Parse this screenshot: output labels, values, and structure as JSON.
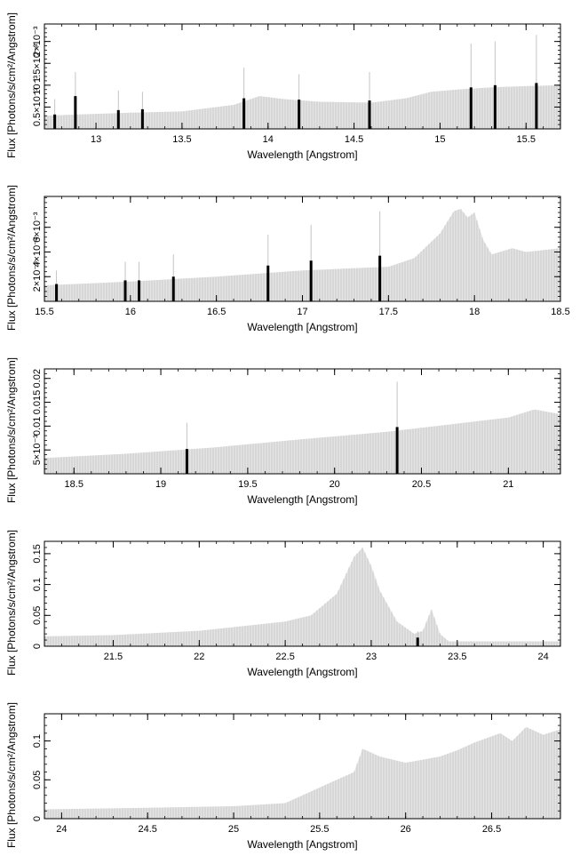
{
  "colors": {
    "fill": "#e4e4e4",
    "stem": "#c4c4c4",
    "marker": "#000000",
    "axis": "#000000"
  },
  "chart_data": [
    {
      "type": "area",
      "xlabel": "Wavelength [Angstrom]",
      "ylabel": "Flux [Photons/s/cm²/Angstrom]",
      "xlim": [
        12.7,
        15.7
      ],
      "ylim": [
        0,
        0.0024
      ],
      "xticks": [
        13,
        13.5,
        14,
        14.5,
        15,
        15.5
      ],
      "xtick_labels": [
        "13",
        "13.5",
        "14",
        "14.5",
        "15",
        "15.5"
      ],
      "yticks": [
        0.0005,
        0.001,
        0.0015,
        0.002
      ],
      "ytick_labels": [
        "0.5×10⁻³",
        "10⁻³",
        "1.5×10⁻³",
        "2×10⁻³"
      ],
      "grid": false,
      "spectrum": [
        [
          12.7,
          0.0003
        ],
        [
          12.9,
          0.00033
        ],
        [
          13.2,
          0.00037
        ],
        [
          13.5,
          0.0004
        ],
        [
          13.8,
          0.00055
        ],
        [
          13.95,
          0.00075
        ],
        [
          14.1,
          0.00068
        ],
        [
          14.3,
          0.00062
        ],
        [
          14.6,
          0.0006
        ],
        [
          14.8,
          0.0007
        ],
        [
          14.95,
          0.00085
        ],
        [
          15.1,
          0.0009
        ],
        [
          15.3,
          0.00095
        ],
        [
          15.5,
          0.00098
        ],
        [
          15.7,
          0.001
        ]
      ],
      "error_bars": [
        {
          "x": 12.76,
          "y": 0.00033,
          "err": 0.00035
        },
        {
          "x": 12.88,
          "y": 0.00075,
          "err": 0.00055
        },
        {
          "x": 13.13,
          "y": 0.00043,
          "err": 0.00045
        },
        {
          "x": 13.27,
          "y": 0.00045,
          "err": 0.0004
        },
        {
          "x": 13.86,
          "y": 0.0007,
          "err": 0.0007
        },
        {
          "x": 14.18,
          "y": 0.00067,
          "err": 0.00058
        },
        {
          "x": 14.59,
          "y": 0.00065,
          "err": 0.00065
        },
        {
          "x": 15.18,
          "y": 0.00095,
          "err": 0.001
        },
        {
          "x": 15.32,
          "y": 0.001,
          "err": 0.001
        },
        {
          "x": 15.56,
          "y": 0.00105,
          "err": 0.0011
        }
      ]
    },
    {
      "type": "area",
      "xlabel": "Wavelength [Angstrom]",
      "ylabel": "Flux [Photons/s/cm²/Angstrom]",
      "xlim": [
        15.5,
        18.5
      ],
      "ylim": [
        0,
        0.0085
      ],
      "xticks": [
        15.5,
        16,
        16.5,
        17,
        17.5,
        18,
        18.5
      ],
      "xtick_labels": [
        "15.5",
        "16",
        "16.5",
        "17",
        "17.5",
        "18",
        "18.5"
      ],
      "yticks": [
        0.002,
        0.004,
        0.006
      ],
      "ytick_labels": [
        "2×10⁻³",
        "4×10⁻³",
        "6×10⁻³"
      ],
      "grid": false,
      "spectrum": [
        [
          15.5,
          0.0013
        ],
        [
          16.0,
          0.0016
        ],
        [
          16.5,
          0.002
        ],
        [
          17.0,
          0.0025
        ],
        [
          17.5,
          0.0028
        ],
        [
          17.65,
          0.0035
        ],
        [
          17.8,
          0.0055
        ],
        [
          17.88,
          0.0073
        ],
        [
          17.92,
          0.0075
        ],
        [
          17.96,
          0.0068
        ],
        [
          18.0,
          0.0072
        ],
        [
          18.05,
          0.005
        ],
        [
          18.1,
          0.0038
        ],
        [
          18.22,
          0.0043
        ],
        [
          18.3,
          0.004
        ],
        [
          18.5,
          0.0043
        ]
      ],
      "error_bars": [
        {
          "x": 15.57,
          "y": 0.0014,
          "err": 0.0011
        },
        {
          "x": 15.97,
          "y": 0.0017,
          "err": 0.0015
        },
        {
          "x": 16.05,
          "y": 0.0017,
          "err": 0.0015
        },
        {
          "x": 16.25,
          "y": 0.002,
          "err": 0.0018
        },
        {
          "x": 16.8,
          "y": 0.0029,
          "err": 0.0025
        },
        {
          "x": 17.05,
          "y": 0.0033,
          "err": 0.0029
        },
        {
          "x": 17.45,
          "y": 0.0037,
          "err": 0.0036
        }
      ]
    },
    {
      "type": "area",
      "xlabel": "Wavelength [Angstrom]",
      "ylabel": "Flux [Photons/s/cm²/Angstrom]",
      "xlim": [
        18.33,
        21.3
      ],
      "ylim": [
        0,
        0.022
      ],
      "xticks": [
        18.5,
        19,
        19.5,
        20,
        20.5,
        21
      ],
      "xtick_labels": [
        "18.5",
        "19",
        "19.5",
        "20",
        "20.5",
        "21"
      ],
      "yticks": [
        0.005,
        0.01,
        0.015,
        0.02
      ],
      "ytick_labels": [
        "5×10⁻³",
        "0.01",
        "0.015",
        "0.02"
      ],
      "grid": false,
      "spectrum": [
        [
          18.33,
          0.0033
        ],
        [
          18.8,
          0.0042
        ],
        [
          19.3,
          0.0055
        ],
        [
          19.8,
          0.0072
        ],
        [
          20.3,
          0.0088
        ],
        [
          20.7,
          0.0105
        ],
        [
          21.0,
          0.0118
        ],
        [
          21.15,
          0.0135
        ],
        [
          21.3,
          0.0125
        ]
      ],
      "error_bars": [
        {
          "x": 19.15,
          "y": 0.0052,
          "err": 0.0055
        },
        {
          "x": 20.36,
          "y": 0.0098,
          "err": 0.0095
        }
      ]
    },
    {
      "type": "area",
      "xlabel": "Wavelength [Angstrom]",
      "ylabel": "Flux [Photons/s/cm²/Angstrom]",
      "xlim": [
        21.1,
        24.1
      ],
      "ylim": [
        0,
        0.17
      ],
      "xticks": [
        21.5,
        22,
        22.5,
        23,
        23.5,
        24
      ],
      "xtick_labels": [
        "21.5",
        "22",
        "22.5",
        "23",
        "23.5",
        "24"
      ],
      "yticks": [
        0,
        0.05,
        0.1,
        0.15
      ],
      "ytick_labels": [
        "0",
        "0.05",
        "0.1",
        "0.15"
      ],
      "grid": false,
      "spectrum": [
        [
          21.1,
          0.016
        ],
        [
          21.5,
          0.018
        ],
        [
          22.0,
          0.025
        ],
        [
          22.5,
          0.04
        ],
        [
          22.65,
          0.05
        ],
        [
          22.8,
          0.085
        ],
        [
          22.9,
          0.145
        ],
        [
          22.95,
          0.16
        ],
        [
          23.0,
          0.13
        ],
        [
          23.05,
          0.09
        ],
        [
          23.15,
          0.04
        ],
        [
          23.25,
          0.02
        ],
        [
          23.3,
          0.025
        ],
        [
          23.35,
          0.06
        ],
        [
          23.4,
          0.02
        ],
        [
          23.45,
          0.008
        ],
        [
          24.1,
          0.008
        ]
      ],
      "error_bars": [
        {
          "x": 23.27,
          "y": 0.014,
          "err": 0.01
        }
      ]
    },
    {
      "type": "area",
      "xlabel": "Wavelength [Angstrom]",
      "ylabel": "Flux [Photons/s/cm²/Angstrom]",
      "xlim": [
        23.9,
        26.9
      ],
      "ylim": [
        0,
        0.135
      ],
      "xticks": [
        24,
        24.5,
        25,
        25.5,
        26,
        26.5
      ],
      "xtick_labels": [
        "24",
        "24.5",
        "25",
        "25.5",
        "26",
        "26.5"
      ],
      "yticks": [
        0,
        0.05,
        0.1
      ],
      "ytick_labels": [
        "0",
        "0.05",
        "0.1"
      ],
      "grid": false,
      "spectrum": [
        [
          23.9,
          0.012
        ],
        [
          24.5,
          0.014
        ],
        [
          25.0,
          0.016
        ],
        [
          25.3,
          0.02
        ],
        [
          25.5,
          0.04
        ],
        [
          25.7,
          0.06
        ],
        [
          25.75,
          0.09
        ],
        [
          25.85,
          0.08
        ],
        [
          26.0,
          0.072
        ],
        [
          26.2,
          0.08
        ],
        [
          26.3,
          0.088
        ],
        [
          26.4,
          0.098
        ],
        [
          26.55,
          0.11
        ],
        [
          26.62,
          0.1
        ],
        [
          26.7,
          0.118
        ],
        [
          26.8,
          0.108
        ],
        [
          26.9,
          0.115
        ]
      ],
      "error_bars": []
    }
  ]
}
